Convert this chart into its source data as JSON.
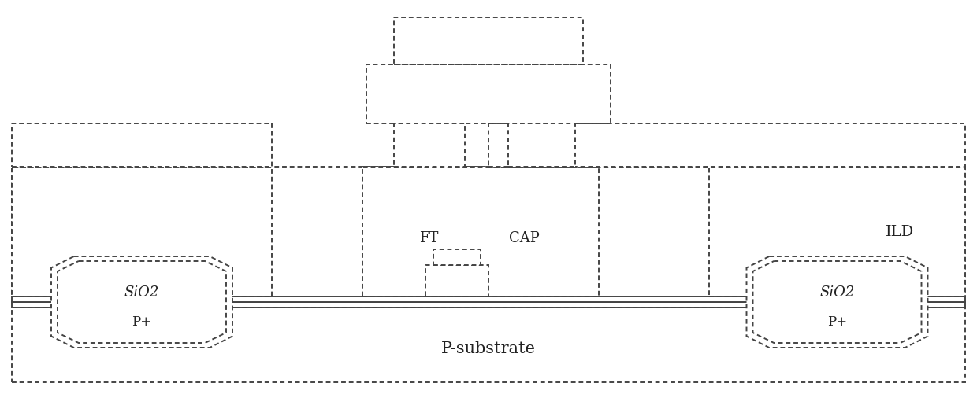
{
  "bg_color": "#ffffff",
  "line_color": "#444444",
  "line_width": 1.4,
  "fig_width": 12.4,
  "fig_height": 5.01,
  "labels": {
    "SiO2_left": "SiO2",
    "SiO2_right": "SiO2",
    "P_plus_left": "P+",
    "P_plus_right": "P+",
    "P_substrate": "P-substrate",
    "FT": "FT",
    "CAP": "CAP",
    "ILD": "ILD"
  },
  "font_size": 13,
  "font_size_substrate": 15
}
